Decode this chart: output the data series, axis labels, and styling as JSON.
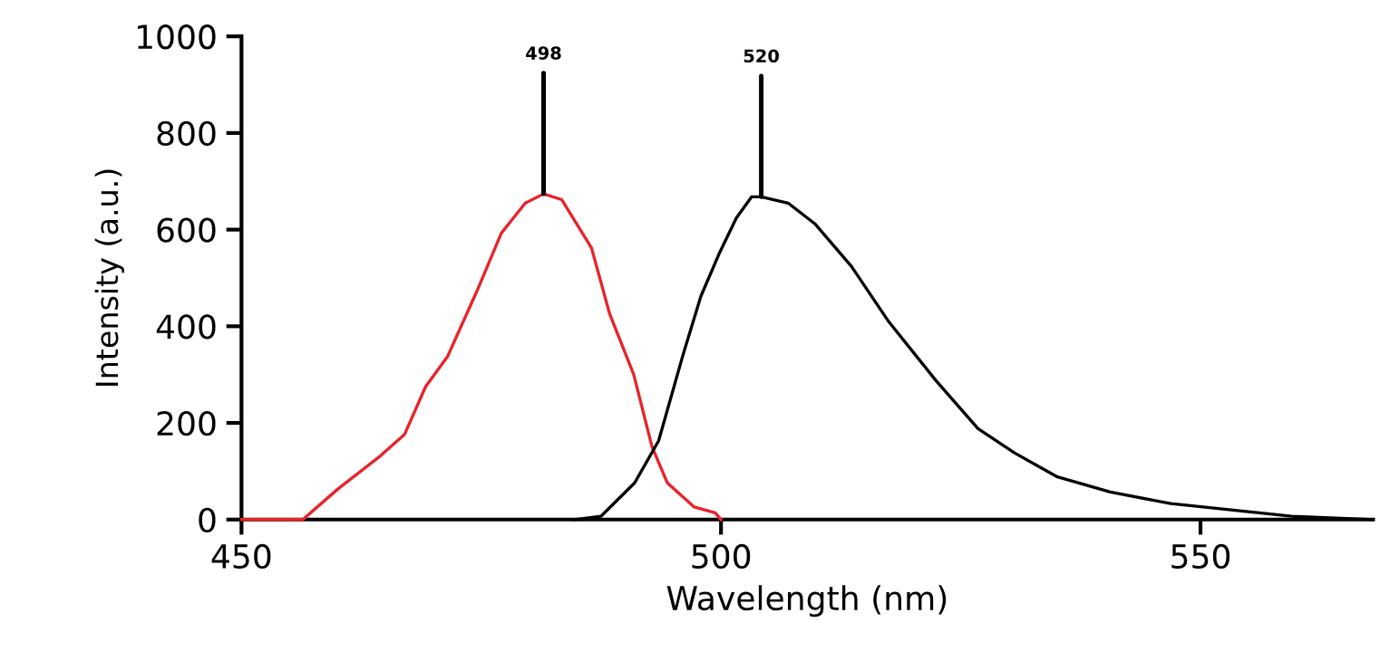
{
  "chart_data": {
    "type": "line",
    "xlabel": "Wavelength (nm)",
    "ylabel": "Intensity (a.u.)",
    "xlim": [
      450,
      568
    ],
    "xticks": [
      450,
      500,
      550
    ],
    "ylim": [
      0,
      1000
    ],
    "yticks": [
      0,
      200,
      400,
      600,
      800,
      1000
    ],
    "grid": false,
    "marker": "none",
    "line_style": "solid",
    "series": [
      {
        "color": "#e8232a",
        "x": [
          450,
          456.4,
          460.1,
          464.5,
          467.0,
          469.2,
          471.5,
          474.6,
          477.1,
          479.6,
          481.5,
          483.4,
          486.5,
          488.4,
          490.9,
          492.8,
          494.4,
          497.2,
          499.4,
          500
        ],
        "values": [
          0,
          0,
          64,
          132,
          176,
          275,
          338,
          475,
          593,
          655,
          674,
          662,
          562,
          425,
          300,
          151,
          76,
          26,
          14,
          0
        ]
      },
      {
        "color": "#000000",
        "x": [
          484.7,
          487.5,
          491.0,
          493.5,
          496.0,
          497.9,
          499.8,
          501.6,
          503.2,
          504.2,
          507.0,
          509.8,
          513.6,
          517.4,
          522.4,
          526.8,
          530.6,
          535.0,
          540.6,
          546.9,
          553.2,
          559.5,
          568
        ],
        "values": [
          0,
          7,
          76,
          163,
          338,
          462,
          550,
          624,
          668,
          668,
          655,
          612,
          524,
          412,
          288,
          188,
          138,
          89,
          57,
          33,
          20,
          7,
          0
        ]
      }
    ],
    "annotations": [
      {
        "text": "498",
        "x": 481.5,
        "y": 674
      },
      {
        "text": "520",
        "x": 504.2,
        "y": 668
      }
    ]
  }
}
